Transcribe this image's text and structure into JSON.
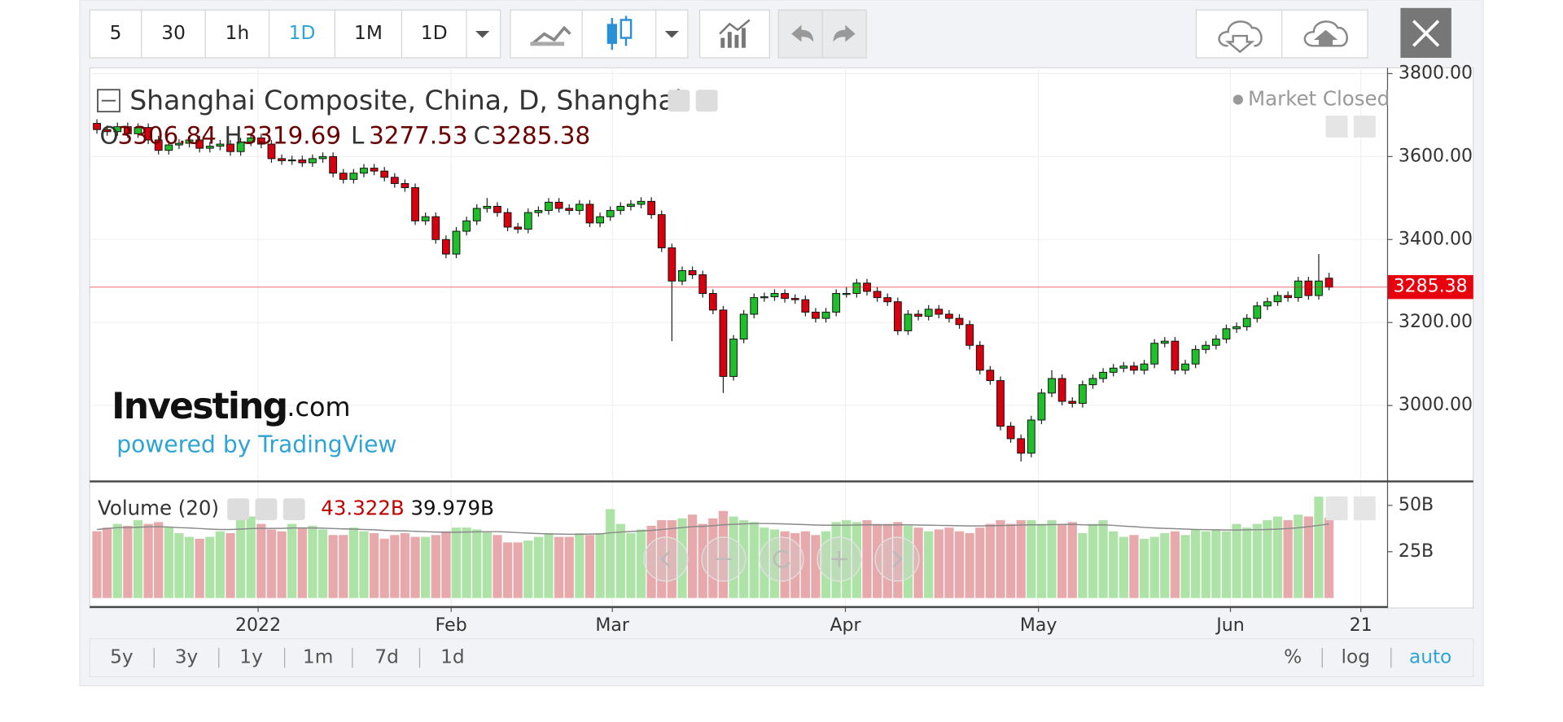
{
  "toolbar": {
    "intervals": [
      "5",
      "30",
      "1h",
      "1D",
      "1M",
      "1D"
    ]
  },
  "chart_data": {
    "type": "candlestick",
    "title": "Shanghai Composite, China, D, Shanghai",
    "status": "Market Closed",
    "ohlc_letters": [
      "O",
      "H",
      "L",
      "C"
    ],
    "logo": "Investing",
    "logo_suffix": ".com",
    "powered_by": "powered by TradingView",
    "up_color": "#1fbf2c",
    "down_color": "#d6000f",
    "last_price_color": "#e8000d",
    "grid": true,
    "xlim": [
      -0.7,
      125.7
    ],
    "xticks": [
      {
        "value": 15.7,
        "label": "2022"
      },
      {
        "value": 34.5,
        "label": "Feb"
      },
      {
        "value": 50.2,
        "label": "Mar"
      },
      {
        "value": 72.9,
        "label": "Apr"
      },
      {
        "value": 91.7,
        "label": "May"
      },
      {
        "value": 110.4,
        "label": "Jun"
      },
      {
        "value": 123.1,
        "label": "21"
      }
    ],
    "ylim": [
      2817,
      3814
    ],
    "yticks": [
      {
        "value": 3800,
        "label": "3800.00"
      },
      {
        "value": 3600,
        "label": "3600.00"
      },
      {
        "value": 3400,
        "label": "3400.00"
      },
      {
        "value": 3200,
        "label": "3200.00"
      },
      {
        "value": 3000,
        "label": "3000.00"
      }
    ],
    "open": [
      3680,
      3665,
      3660,
      3672,
      3655,
      3670,
      3640,
      3615,
      3628,
      3632,
      3640,
      3620,
      3625,
      3630,
      3612,
      3635,
      3645,
      3630,
      3595,
      3590,
      3592,
      3585,
      3595,
      3600,
      3560,
      3545,
      3560,
      3572,
      3565,
      3550,
      3535,
      3525,
      3445,
      3455,
      3400,
      3365,
      3420,
      3445,
      3475,
      3480,
      3465,
      3430,
      3425,
      3465,
      3470,
      3490,
      3475,
      3470,
      3485,
      3440,
      3455,
      3470,
      3480,
      3485,
      3492,
      3460,
      3380,
      3300,
      3325,
      3315,
      3270,
      3230,
      3070,
      3160,
      3220,
      3260,
      3262,
      3270,
      3258,
      3255,
      3225,
      3210,
      3225,
      3270,
      3270,
      3295,
      3275,
      3260,
      3250,
      3180,
      3220,
      3215,
      3232,
      3220,
      3210,
      3195,
      3145,
      3085,
      3060,
      2950,
      2920,
      2885,
      2965,
      3030,
      3065,
      3010,
      3005,
      3050,
      3065,
      3080,
      3090,
      3095,
      3085,
      3100,
      3150,
      3155,
      3085,
      3100,
      3135,
      3145,
      3160,
      3185,
      3190,
      3210,
      3240,
      3250,
      3265,
      3260,
      3300,
      3265,
      3306.84
    ],
    "high": [
      3690,
      3675,
      3682,
      3682,
      3680,
      3680,
      3650,
      3638,
      3642,
      3650,
      3650,
      3635,
      3640,
      3640,
      3645,
      3655,
      3655,
      3640,
      3605,
      3602,
      3602,
      3605,
      3610,
      3610,
      3570,
      3570,
      3582,
      3582,
      3575,
      3560,
      3545,
      3535,
      3465,
      3465,
      3410,
      3430,
      3455,
      3485,
      3500,
      3490,
      3475,
      3440,
      3475,
      3480,
      3500,
      3500,
      3485,
      3495,
      3495,
      3465,
      3480,
      3490,
      3495,
      3502,
      3502,
      3470,
      3390,
      3335,
      3335,
      3325,
      3280,
      3240,
      3170,
      3230,
      3270,
      3272,
      3280,
      3280,
      3268,
      3265,
      3235,
      3235,
      3280,
      3285,
      3305,
      3305,
      3285,
      3270,
      3260,
      3230,
      3230,
      3242,
      3242,
      3230,
      3220,
      3205,
      3155,
      3095,
      3070,
      2960,
      2930,
      2975,
      3040,
      3085,
      3075,
      3020,
      3060,
      3075,
      3090,
      3100,
      3105,
      3105,
      3110,
      3160,
      3165,
      3165,
      3110,
      3145,
      3155,
      3170,
      3195,
      3200,
      3220,
      3250,
      3260,
      3275,
      3275,
      3310,
      3310,
      3365,
      3319.69
    ],
    "low": [
      3655,
      3650,
      3650,
      3645,
      3645,
      3630,
      3605,
      3605,
      3618,
      3622,
      3610,
      3610,
      3615,
      3602,
      3602,
      3625,
      3620,
      3585,
      3580,
      3580,
      3575,
      3575,
      3585,
      3550,
      3535,
      3535,
      3550,
      3555,
      3540,
      3525,
      3515,
      3435,
      3435,
      3390,
      3355,
      3355,
      3410,
      3435,
      3465,
      3455,
      3420,
      3415,
      3415,
      3455,
      3460,
      3465,
      3460,
      3460,
      3430,
      3430,
      3445,
      3460,
      3470,
      3475,
      3450,
      3370,
      3155,
      3290,
      3305,
      3260,
      3220,
      3030,
      3060,
      3150,
      3210,
      3250,
      3252,
      3248,
      3245,
      3215,
      3200,
      3200,
      3215,
      3260,
      3260,
      3265,
      3250,
      3240,
      3170,
      3170,
      3205,
      3205,
      3210,
      3200,
      3185,
      3135,
      3075,
      3050,
      2940,
      2910,
      2865,
      2875,
      2955,
      3020,
      3000,
      2995,
      2995,
      3040,
      3055,
      3070,
      3080,
      3075,
      3075,
      3090,
      3140,
      3075,
      3075,
      3090,
      3125,
      3135,
      3150,
      3175,
      3180,
      3200,
      3230,
      3240,
      3250,
      3250,
      3255,
      3255,
      3277.53
    ],
    "close": [
      3665,
      3660,
      3672,
      3655,
      3670,
      3640,
      3615,
      3628,
      3632,
      3640,
      3620,
      3625,
      3630,
      3612,
      3635,
      3645,
      3630,
      3595,
      3590,
      3592,
      3585,
      3595,
      3600,
      3560,
      3545,
      3560,
      3572,
      3565,
      3550,
      3535,
      3525,
      3445,
      3455,
      3400,
      3365,
      3420,
      3445,
      3475,
      3480,
      3465,
      3430,
      3425,
      3465,
      3470,
      3490,
      3475,
      3470,
      3485,
      3440,
      3455,
      3470,
      3480,
      3485,
      3492,
      3460,
      3380,
      3300,
      3325,
      3315,
      3270,
      3230,
      3070,
      3160,
      3220,
      3260,
      3262,
      3270,
      3258,
      3255,
      3225,
      3210,
      3225,
      3270,
      3270,
      3295,
      3275,
      3260,
      3250,
      3180,
      3220,
      3215,
      3232,
      3220,
      3210,
      3195,
      3145,
      3085,
      3060,
      2950,
      2920,
      2885,
      2965,
      3030,
      3065,
      3010,
      3005,
      3050,
      3065,
      3080,
      3090,
      3095,
      3085,
      3100,
      3150,
      3155,
      3085,
      3100,
      3135,
      3145,
      3160,
      3185,
      3190,
      3210,
      3240,
      3250,
      3265,
      3260,
      3300,
      3265,
      3300,
      3285.38
    ],
    "volume": {
      "title": "Volume (20)",
      "up_color": "#aee3a8",
      "down_color": "#e7a9ab",
      "ma_color": "#8a8a8a",
      "value_label": "43.322B",
      "ma_label": "39.979B",
      "ylim": [
        0,
        62.4
      ],
      "yticks": [
        {
          "value": 50,
          "label": "50B"
        },
        {
          "value": 25,
          "label": "25B"
        }
      ],
      "values": [
        36,
        38,
        40,
        39,
        42,
        40,
        41,
        38,
        35,
        33,
        32,
        33,
        36,
        35,
        44,
        44,
        40,
        37,
        36,
        40,
        38,
        39,
        37,
        34,
        34,
        38,
        36,
        35,
        32,
        34,
        35,
        33,
        33,
        34,
        36,
        38,
        38,
        37,
        36,
        34,
        30,
        30,
        31,
        33,
        35,
        33,
        33,
        35,
        34,
        35,
        48,
        40,
        35,
        37,
        39,
        42,
        42,
        43,
        45,
        40,
        43,
        47,
        44,
        42,
        41,
        38,
        37,
        36,
        35,
        36,
        34,
        36,
        41,
        42,
        41,
        42,
        40,
        40,
        41,
        39,
        38,
        36,
        37,
        38,
        36,
        35,
        38,
        40,
        42,
        40,
        42,
        42,
        40,
        42,
        40,
        41,
        35,
        40,
        42,
        36,
        33,
        34,
        32,
        33,
        35,
        36,
        34,
        37,
        36,
        37,
        36,
        40,
        38,
        40,
        42,
        44,
        42,
        45,
        44,
        54.7,
        43.322
      ],
      "ma_values": [
        37,
        37.5,
        38,
        38,
        38.2,
        38.4,
        38.5,
        38.3,
        38,
        37.8,
        37.5,
        37.2,
        37,
        37,
        37.2,
        37.5,
        37.6,
        37.6,
        37.6,
        37.8,
        37.8,
        37.8,
        37.7,
        37.5,
        37.3,
        37.2,
        37,
        36.8,
        36.5,
        36.3,
        36.2,
        36,
        35.8,
        35.6,
        35.5,
        35.5,
        35.6,
        35.7,
        35.8,
        35.8,
        35.6,
        35.3,
        35,
        34.8,
        34.6,
        34.5,
        34.4,
        34.4,
        34.5,
        34.6,
        35.2,
        35.6,
        35.9,
        36.2,
        36.5,
        37,
        37.5,
        38,
        38.5,
        38.7,
        39,
        39.5,
        39.8,
        40,
        40.2,
        40.2,
        40.1,
        40,
        39.8,
        39.6,
        39.4,
        39.3,
        39.3,
        39.3,
        39.4,
        39.5,
        39.5,
        39.4,
        39.5,
        39.5,
        39.4,
        39.3,
        39.2,
        39.1,
        39,
        38.9,
        38.9,
        39,
        39.1,
        39.2,
        39.4,
        39.5,
        39.5,
        39.6,
        39.7,
        39.8,
        39.5,
        39.4,
        39.5,
        39.2,
        38.8,
        38.5,
        38.1,
        37.8,
        37.6,
        37.4,
        37.2,
        37,
        36.9,
        36.8,
        36.7,
        36.7,
        36.8,
        36.9,
        37,
        37.2,
        37.5,
        37.9,
        38.5,
        39.2,
        39.979
      ]
    }
  },
  "footer": {
    "ranges": [
      "5y",
      "3y",
      "1y",
      "1m",
      "7d",
      "1d"
    ],
    "scale_options": [
      "%",
      "log",
      "auto"
    ]
  }
}
